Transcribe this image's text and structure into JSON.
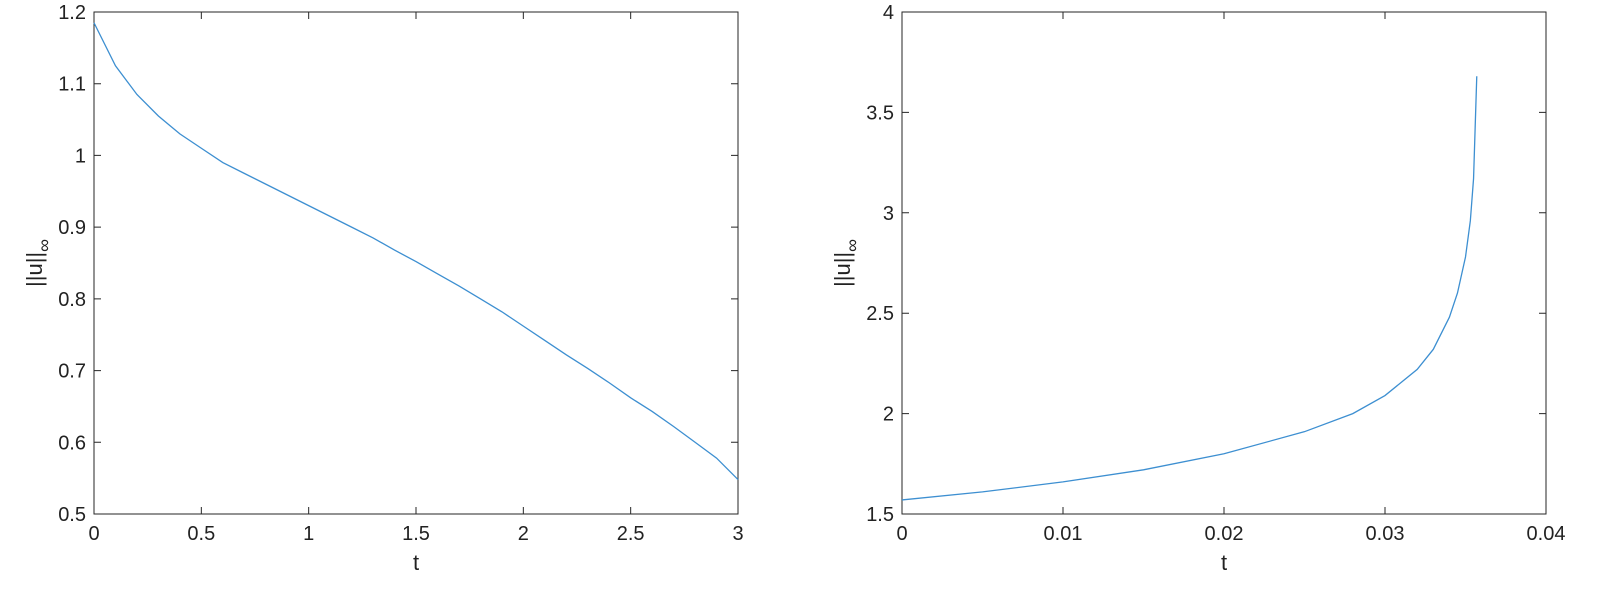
{
  "chart_data": [
    {
      "type": "line",
      "xlabel": "t",
      "ylabel": "||u||",
      "ylabel_sub": "∞",
      "x": [
        0,
        0.1,
        0.2,
        0.3,
        0.4,
        0.5,
        0.6,
        0.7,
        0.8,
        0.9,
        1.0,
        1.1,
        1.2,
        1.3,
        1.4,
        1.5,
        1.6,
        1.7,
        1.8,
        1.9,
        2.0,
        2.1,
        2.2,
        2.3,
        2.4,
        2.5,
        2.6,
        2.7,
        2.8,
        2.9,
        3.0
      ],
      "series": [
        {
          "color": "#3d8fd1",
          "values": [
            1.185,
            1.125,
            1.085,
            1.055,
            1.03,
            1.01,
            0.99,
            0.975,
            0.96,
            0.945,
            0.93,
            0.915,
            0.9,
            0.885,
            0.868,
            0.852,
            0.835,
            0.818,
            0.8,
            0.782,
            0.762,
            0.742,
            0.722,
            0.703,
            0.683,
            0.662,
            0.643,
            0.622,
            0.6,
            0.578,
            0.548
          ]
        }
      ],
      "xlim": [
        0,
        3
      ],
      "xticks": [
        0,
        0.5,
        1,
        1.5,
        2,
        2.5,
        3
      ],
      "ylim": [
        0.5,
        1.2
      ],
      "yticks": [
        0.5,
        0.6,
        0.7,
        0.8,
        0.9,
        1,
        1.1,
        1.2
      ]
    },
    {
      "type": "line",
      "xlabel": "t",
      "ylabel": "||u||",
      "ylabel_sub": "∞",
      "x": [
        0,
        0.005,
        0.01,
        0.015,
        0.02,
        0.025,
        0.028,
        0.03,
        0.032,
        0.033,
        0.034,
        0.0345,
        0.035,
        0.0353,
        0.0355,
        0.0357
      ],
      "series": [
        {
          "color": "#3d8fd1",
          "values": [
            1.57,
            1.61,
            1.66,
            1.72,
            1.8,
            1.91,
            2.0,
            2.09,
            2.22,
            2.32,
            2.48,
            2.6,
            2.78,
            2.96,
            3.17,
            3.68
          ]
        }
      ],
      "xlim": [
        0,
        0.04
      ],
      "xticks": [
        0,
        0.01,
        0.02,
        0.03,
        0.04
      ],
      "ylim": [
        1.5,
        4
      ],
      "yticks": [
        1.5,
        2,
        2.5,
        3,
        3.5,
        4
      ]
    }
  ]
}
